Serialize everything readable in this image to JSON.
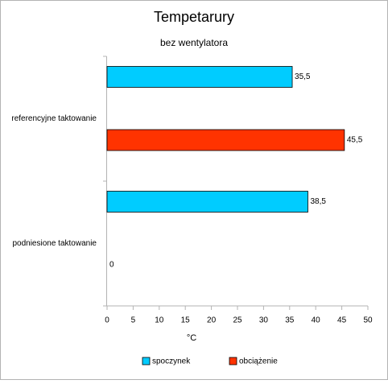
{
  "chart_data": {
    "type": "hbar",
    "title": "Tempetarury",
    "subtitle": "bez wentylatora",
    "categories": [
      "referencyjne taktowanie",
      "podniesione taktowanie"
    ],
    "series": [
      {
        "name": "spoczynek",
        "color": "#00ccff",
        "values": [
          35.5,
          38.5
        ],
        "value_labels": [
          "35,5",
          "38,5"
        ]
      },
      {
        "name": "obciążenie",
        "color": "#ff3300",
        "values": [
          45.5,
          0
        ],
        "value_labels": [
          "45,5",
          "0"
        ]
      }
    ],
    "xlabel": "°C",
    "xlim": [
      0,
      50
    ],
    "xticks": [
      0,
      5,
      10,
      15,
      20,
      25,
      30,
      35,
      40,
      45,
      50
    ],
    "grid": false,
    "legend": "bottom"
  }
}
